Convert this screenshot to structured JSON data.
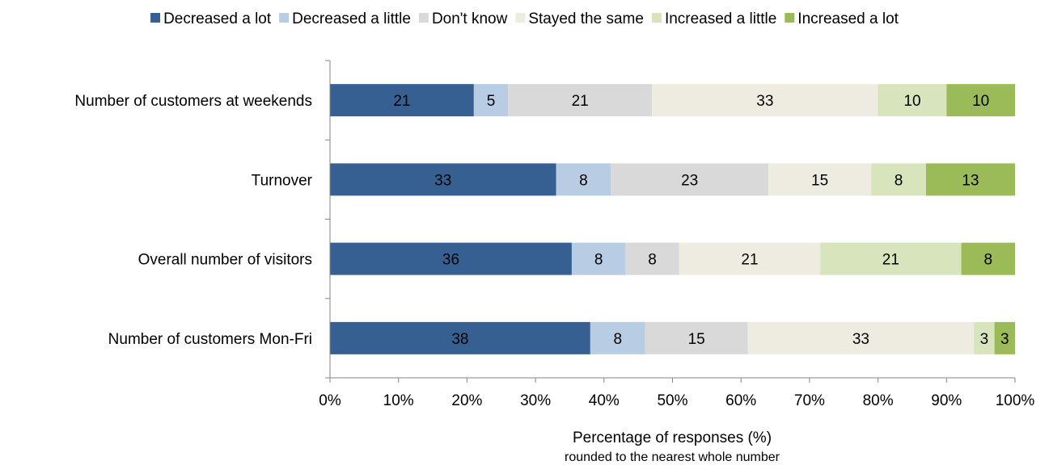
{
  "chart_data": {
    "type": "bar",
    "orientation": "horizontal",
    "stacked": true,
    "percent_stacked": true,
    "categories": [
      "Number of customers at weekends",
      "Turnover",
      "Overall number of visitors",
      "Number of customers Mon-Fri"
    ],
    "series": [
      {
        "name": "Decreased a lot",
        "color": "#366092",
        "values": [
          21,
          33,
          36,
          38
        ]
      },
      {
        "name": "Decreased a little",
        "color": "#b8cce4",
        "values": [
          5,
          8,
          8,
          8
        ]
      },
      {
        "name": "Don't know",
        "color": "#d9d9d9",
        "values": [
          21,
          23,
          8,
          15
        ]
      },
      {
        "name": "Stayed the same",
        "color": "#eeece1",
        "values": [
          33,
          15,
          21,
          33
        ]
      },
      {
        "name": "Increased a little",
        "color": "#d7e4bc",
        "values": [
          10,
          8,
          21,
          3
        ]
      },
      {
        "name": "Increased a lot",
        "color": "#9bbb59",
        "values": [
          10,
          13,
          8,
          3
        ]
      }
    ],
    "xlim": [
      0,
      100
    ],
    "xticks": [
      "0%",
      "10%",
      "20%",
      "30%",
      "40%",
      "50%",
      "60%",
      "70%",
      "80%",
      "90%",
      "100%"
    ],
    "xlabel": "Percentage of responses (%)",
    "xlabel_sub": "rounded to the nearest whole number",
    "ylabel": "",
    "title": "",
    "legend_position": "top",
    "grid": false
  }
}
